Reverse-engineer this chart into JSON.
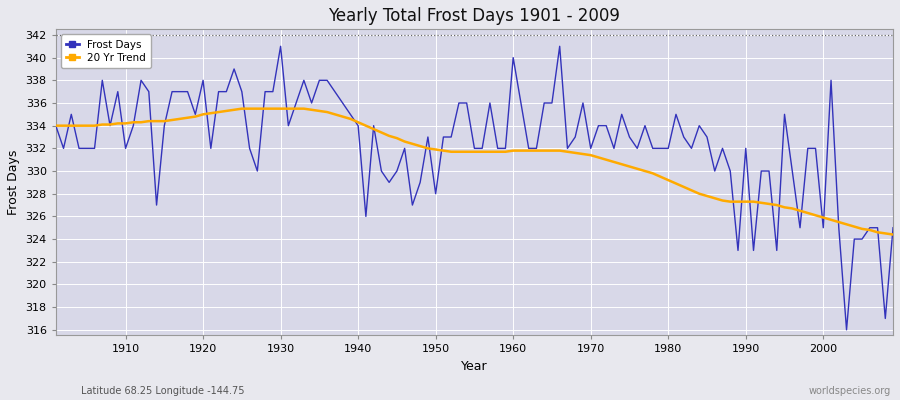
{
  "title": "Yearly Total Frost Days 1901 - 2009",
  "xlabel": "Year",
  "ylabel": "Frost Days",
  "subtitle": "Latitude 68.25 Longitude -144.75",
  "watermark": "worldspecies.org",
  "ylim": [
    315.5,
    342.5
  ],
  "yticks": [
    316,
    318,
    320,
    322,
    324,
    326,
    328,
    330,
    332,
    334,
    336,
    338,
    340,
    342
  ],
  "hline_y": 342,
  "fig_bg_color": "#e8e8ee",
  "plot_bg_color": "#d8d8e8",
  "line_color": "#3333bb",
  "trend_color": "#ffaa00",
  "years": [
    1901,
    1902,
    1903,
    1904,
    1905,
    1906,
    1907,
    1908,
    1909,
    1910,
    1911,
    1912,
    1913,
    1914,
    1915,
    1916,
    1917,
    1918,
    1919,
    1920,
    1921,
    1922,
    1923,
    1924,
    1925,
    1926,
    1927,
    1928,
    1929,
    1930,
    1931,
    1932,
    1933,
    1934,
    1935,
    1936,
    1937,
    1938,
    1939,
    1940,
    1941,
    1942,
    1943,
    1944,
    1945,
    1946,
    1947,
    1948,
    1949,
    1950,
    1951,
    1952,
    1953,
    1954,
    1955,
    1956,
    1957,
    1958,
    1959,
    1960,
    1961,
    1962,
    1963,
    1964,
    1965,
    1966,
    1967,
    1968,
    1969,
    1970,
    1971,
    1972,
    1973,
    1974,
    1975,
    1976,
    1977,
    1978,
    1979,
    1980,
    1981,
    1982,
    1983,
    1984,
    1985,
    1986,
    1987,
    1988,
    1989,
    1990,
    1991,
    1992,
    1993,
    1994,
    1995,
    1996,
    1997,
    1998,
    1999,
    2000,
    2001,
    2002,
    2003,
    2004,
    2005,
    2006,
    2007,
    2008,
    2009
  ],
  "frost_days": [
    334,
    332,
    335,
    332,
    332,
    332,
    338,
    334,
    337,
    332,
    334,
    338,
    337,
    327,
    334,
    337,
    337,
    337,
    335,
    338,
    332,
    337,
    337,
    339,
    337,
    332,
    330,
    337,
    337,
    341,
    334,
    336,
    338,
    336,
    338,
    338,
    337,
    336,
    335,
    334,
    326,
    334,
    330,
    329,
    330,
    332,
    327,
    329,
    333,
    328,
    333,
    333,
    336,
    336,
    332,
    332,
    336,
    332,
    332,
    340,
    336,
    332,
    332,
    336,
    336,
    341,
    332,
    333,
    336,
    332,
    334,
    334,
    332,
    335,
    333,
    332,
    334,
    332,
    332,
    332,
    335,
    333,
    332,
    334,
    333,
    330,
    332,
    330,
    323,
    332,
    323,
    330,
    330,
    323,
    335,
    330,
    325,
    332,
    332,
    325,
    338,
    325,
    316,
    324,
    324,
    325,
    325,
    317,
    325
  ],
  "trend": [
    334.0,
    334.0,
    334.0,
    334.0,
    334.0,
    334.0,
    334.1,
    334.1,
    334.2,
    334.2,
    334.3,
    334.3,
    334.4,
    334.4,
    334.4,
    334.5,
    334.6,
    334.7,
    334.8,
    335.0,
    335.1,
    335.2,
    335.3,
    335.4,
    335.5,
    335.5,
    335.5,
    335.5,
    335.5,
    335.5,
    335.5,
    335.5,
    335.5,
    335.4,
    335.3,
    335.2,
    335.0,
    334.8,
    334.6,
    334.3,
    334.0,
    333.7,
    333.4,
    333.1,
    332.9,
    332.6,
    332.4,
    332.2,
    332.0,
    331.9,
    331.8,
    331.7,
    331.7,
    331.7,
    331.7,
    331.7,
    331.7,
    331.7,
    331.7,
    331.8,
    331.8,
    331.8,
    331.8,
    331.8,
    331.8,
    331.8,
    331.7,
    331.6,
    331.5,
    331.4,
    331.2,
    331.0,
    330.8,
    330.6,
    330.4,
    330.2,
    330.0,
    329.8,
    329.5,
    329.2,
    328.9,
    328.6,
    328.3,
    328.0,
    327.8,
    327.6,
    327.4,
    327.3,
    327.3,
    327.3,
    327.3,
    327.2,
    327.1,
    327.0,
    326.8,
    326.7,
    326.5,
    326.3,
    326.1,
    325.9,
    325.7,
    325.5,
    325.3,
    325.1,
    324.9,
    324.8,
    324.6,
    324.5,
    324.4
  ]
}
